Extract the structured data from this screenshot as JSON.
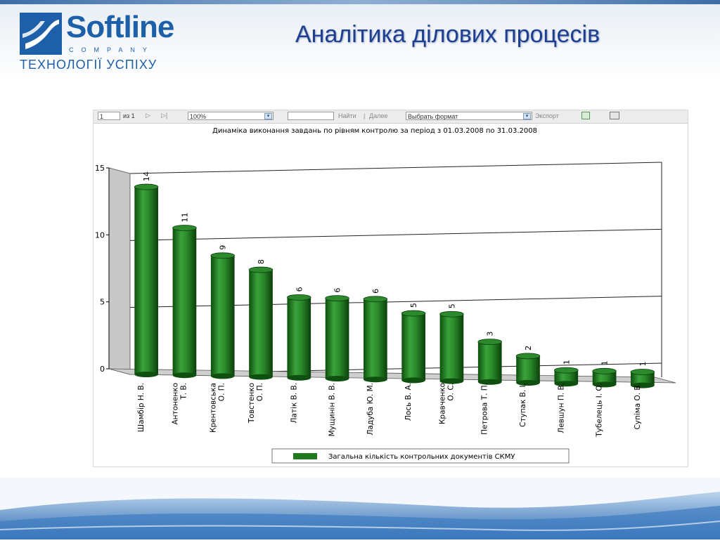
{
  "slide": {
    "title": "Аналітика ділових процесів",
    "logo_word": "Softline",
    "logo_company": "COMPANY",
    "logo_slogan": "ТЕХНОЛОГІЇ УСПІХУ"
  },
  "toolbar": {
    "page_value": "1",
    "page_of": "из 1",
    "zoom_value": "100%",
    "find_label": "Найти",
    "separator": "|",
    "next_label": "Далее",
    "format_value": "Выбрать формат",
    "export_label": "Экспорт",
    "icons": [
      "first-page-icon",
      "prev-page-icon",
      "next-page-icon",
      "last-page-icon",
      "refresh-icon",
      "print-icon"
    ],
    "accent": "#2a7a2a"
  },
  "chart_data": {
    "type": "bar",
    "title": "Динаміка виконання завдань по рівням контролю за період з 01.03.2008 по 31.03.2008",
    "categories": [
      [
        "Шамбір Н. В."
      ],
      [
        "Антоненко",
        "Т. В."
      ],
      [
        "Крентовська",
        "О. П."
      ],
      [
        "Товстенко",
        "О. П."
      ],
      [
        "Латік В. В."
      ],
      [
        "Мущинін В. В."
      ],
      [
        "Ладуба Ю. М."
      ],
      [
        "Лось В. А."
      ],
      [
        "Кравченко",
        "О. С."
      ],
      [
        "Петрова Т. П."
      ],
      [
        "Ступак В. І."
      ],
      [
        "Левшун П. В."
      ],
      [
        "Тубелець І. О."
      ],
      [
        "Супіма О. В."
      ]
    ],
    "series": [
      {
        "name": "Загальна кількість контрольних документів СКМУ",
        "values": [
          14,
          11,
          9,
          8,
          6,
          6,
          6,
          5,
          5,
          3,
          2,
          1,
          1,
          1
        ],
        "color": "#1f7a1f"
      }
    ],
    "ylim": [
      0,
      15
    ],
    "yticks": [
      0,
      5,
      10,
      15
    ],
    "grid": true,
    "legend": "bottom"
  }
}
